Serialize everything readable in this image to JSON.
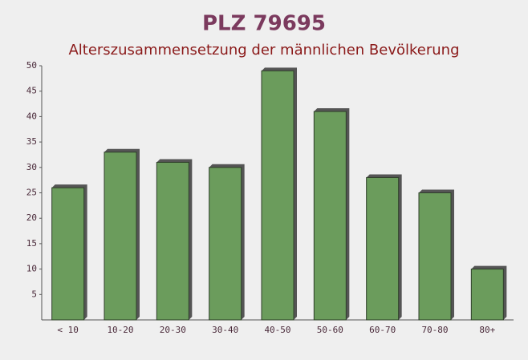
{
  "chart_data": {
    "type": "bar",
    "title": "PLZ 79695",
    "subtitle": "Alterszusammensetzung der männlichen Bevölkerung",
    "categories": [
      "< 10",
      "10-20",
      "20-30",
      "30-40",
      "40-50",
      "50-60",
      "60-70",
      "70-80",
      "80+"
    ],
    "values": [
      26,
      33,
      31,
      30,
      49,
      41,
      28,
      25,
      10
    ],
    "color": "#6b9c5c",
    "ylim": [
      0,
      50
    ],
    "yticks": [
      5,
      10,
      15,
      20,
      25,
      30,
      35,
      40,
      45,
      50
    ],
    "grid": false
  }
}
